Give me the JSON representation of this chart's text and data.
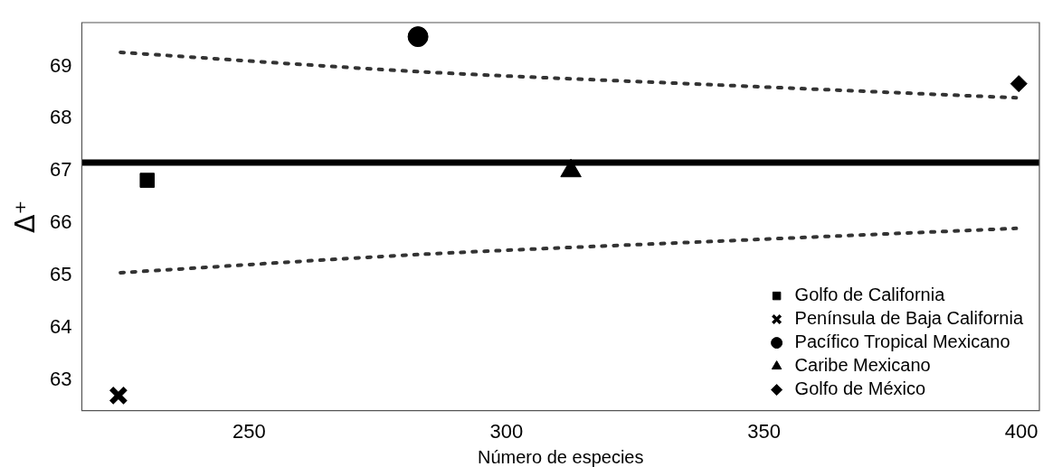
{
  "chart_data": {
    "type": "scatter",
    "xlabel": "Número de especies",
    "ylabel": "Δ⁺",
    "xlim": [
      217.5,
      403.5
    ],
    "ylim": [
      62.41,
      69.84
    ],
    "xticks": [
      250,
      300,
      350,
      400
    ],
    "yticks": [
      63,
      64,
      65,
      66,
      67,
      68,
      69
    ],
    "grid": false,
    "legend": "bottom right",
    "series": [
      {
        "name": "Golfo de California",
        "color": "#000000",
        "x": [
          230.2
        ],
        "values": [
          66.82
        ],
        "marker": "square"
      },
      {
        "name": "Península de Baja California",
        "color": "#000000",
        "x": [
          224.6
        ],
        "values": [
          62.7
        ],
        "marker": "cross"
      },
      {
        "name": "Pacífico Tropical Mexicano",
        "color": "#000000",
        "x": [
          282.8
        ],
        "values": [
          69.57
        ],
        "marker": "circle"
      },
      {
        "name": "Caribe Mexicano",
        "color": "#000000",
        "x": [
          312.5
        ],
        "values": [
          67.0
        ],
        "marker": "triangle"
      },
      {
        "name": "Golfo de México",
        "color": "#000000",
        "x": [
          399.5
        ],
        "values": [
          68.67
        ],
        "marker": "diamond"
      },
      {
        "type": "line",
        "color": "#333333",
        "x": [
          225,
          283,
          340,
          399
        ],
        "values": [
          69.27,
          68.9,
          68.65,
          68.4
        ],
        "line_style": "dotted",
        "marker": "none"
      },
      {
        "type": "line",
        "color": "#333333",
        "x": [
          225,
          283,
          340,
          399
        ],
        "values": [
          65.05,
          65.4,
          65.65,
          65.9
        ],
        "line_style": "dotted",
        "marker": "none"
      }
    ],
    "ref_lines": [
      {
        "axis": "y",
        "value": 67.16,
        "color": "#000000"
      }
    ]
  }
}
